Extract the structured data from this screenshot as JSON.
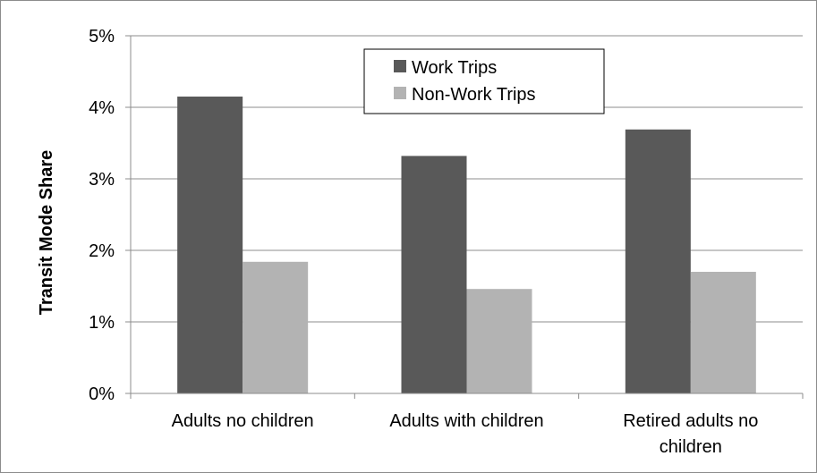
{
  "chart_data": {
    "type": "bar",
    "title": "",
    "xlabel": "",
    "ylabel": "Transit Mode Share",
    "categories": [
      "Adults no children",
      "Adults with children",
      "Retired adults no children"
    ],
    "series": [
      {
        "name": "Work Trips",
        "values": [
          4.15,
          3.32,
          3.69
        ],
        "color": "#595959"
      },
      {
        "name": "Non-Work Trips",
        "values": [
          1.84,
          1.46,
          1.7
        ],
        "color": "#b3b3b3"
      }
    ],
    "ylim": [
      0,
      5
    ],
    "yticks": [
      "0%",
      "1%",
      "2%",
      "3%",
      "4%",
      "5%"
    ],
    "grid": true,
    "legend": "top-center"
  }
}
